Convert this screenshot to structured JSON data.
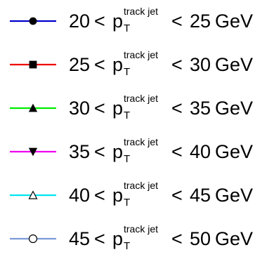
{
  "legend": {
    "entries": [
      {
        "low": "20",
        "high": "25",
        "lt": "<",
        "var": "p",
        "sup": "track jet",
        "sub": "T",
        "unit": "GeV",
        "color": "#0000cc",
        "marker": "filled-circle"
      },
      {
        "low": "25",
        "high": "30",
        "lt": "<",
        "var": "p",
        "sup": "track jet",
        "sub": "T",
        "unit": "GeV",
        "color": "#ee0000",
        "marker": "filled-square"
      },
      {
        "low": "30",
        "high": "35",
        "lt": "<",
        "var": "p",
        "sup": "track jet",
        "sub": "T",
        "unit": "GeV",
        "color": "#00ee00",
        "marker": "filled-triangle-up"
      },
      {
        "low": "35",
        "high": "40",
        "lt": "<",
        "var": "p",
        "sup": "track jet",
        "sub": "T",
        "unit": "GeV",
        "color": "#ee00ee",
        "marker": "filled-triangle-down"
      },
      {
        "low": "40",
        "high": "45",
        "lt": "<",
        "var": "p",
        "sup": "track jet",
        "sub": "T",
        "unit": "GeV",
        "color": "#00e5ee",
        "marker": "open-triangle-up"
      },
      {
        "low": "45",
        "high": "50",
        "lt": "<",
        "var": "p",
        "sup": "track jet",
        "sub": "T",
        "unit": "GeV",
        "color": "#7b9bd9",
        "marker": "open-circle"
      }
    ]
  },
  "chart_data": {
    "type": "line",
    "title": "",
    "xlabel": "",
    "ylabel": "",
    "legend_placement": "full-panel",
    "series": [
      {
        "name": "20 < p_T^{track jet} < 25 GeV",
        "color": "#0000cc",
        "marker": "filled-circle",
        "values": []
      },
      {
        "name": "25 < p_T^{track jet} < 30 GeV",
        "color": "#ee0000",
        "marker": "filled-square",
        "values": []
      },
      {
        "name": "30 < p_T^{track jet} < 35 GeV",
        "color": "#00ee00",
        "marker": "filled-triangle-up",
        "values": []
      },
      {
        "name": "35 < p_T^{track jet} < 40 GeV",
        "color": "#ee00ee",
        "marker": "filled-triangle-down",
        "values": []
      },
      {
        "name": "40 < p_T^{track jet} < 45 GeV",
        "color": "#00e5ee",
        "marker": "open-triangle-up",
        "values": []
      },
      {
        "name": "45 < p_T^{track jet} < 50 GeV",
        "color": "#7b9bd9",
        "marker": "open-circle",
        "values": []
      }
    ]
  }
}
